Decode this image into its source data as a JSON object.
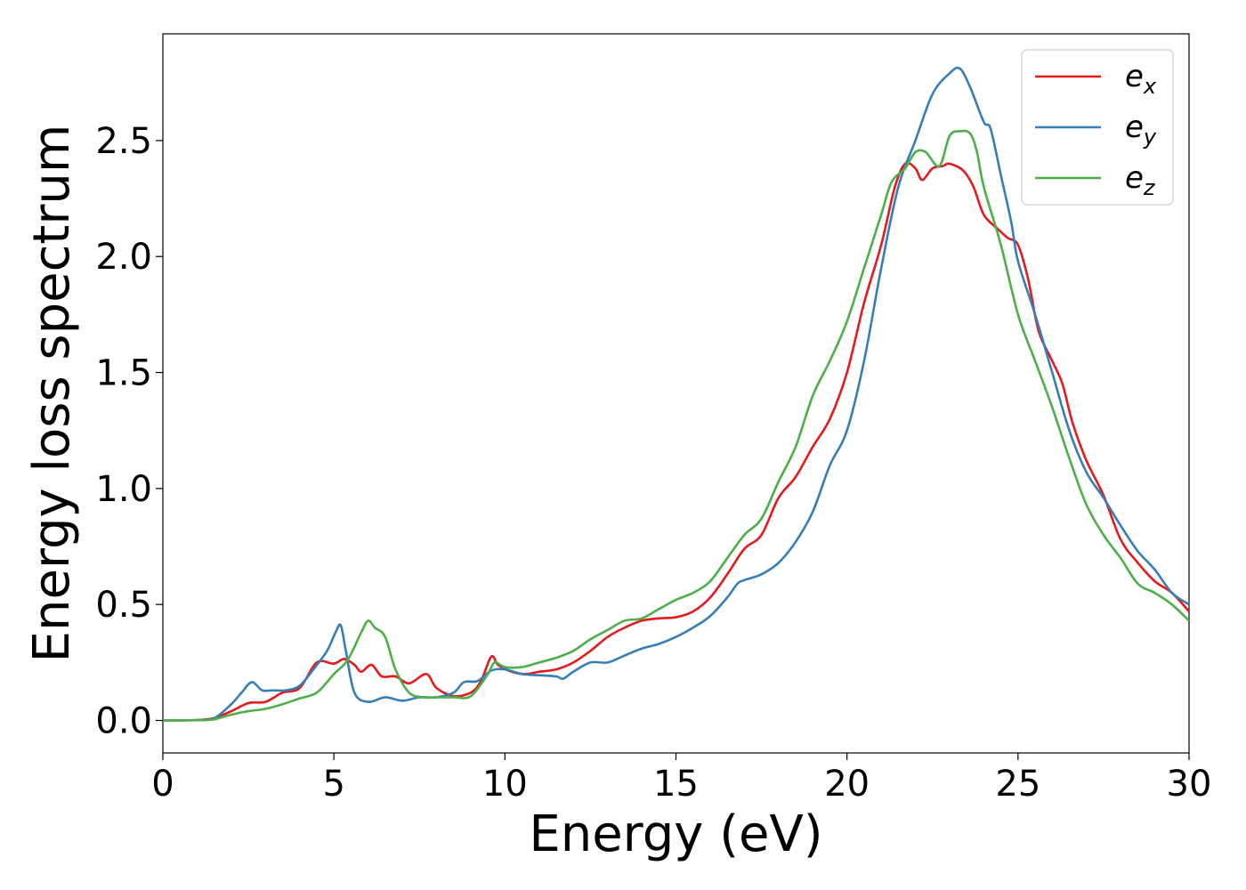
{
  "chart_data": {
    "type": "line",
    "xlabel": "Energy (eV)",
    "ylabel": "Energy loss spectrum",
    "xlim": [
      0,
      30
    ],
    "ylim": [
      -0.14,
      2.96
    ],
    "xticks": [
      "0",
      "5",
      "10",
      "15",
      "20",
      "25",
      "30"
    ],
    "yticks": [
      "0.0",
      "0.5",
      "1.0",
      "1.5",
      "2.0",
      "2.5"
    ],
    "legend_position": "top-right",
    "grid": false,
    "series": [
      {
        "name": "e_x",
        "label_base": "e",
        "label_sub": "x",
        "color": "#e41a1c",
        "points": [
          [
            0,
            0
          ],
          [
            1,
            0.002
          ],
          [
            1.5,
            0.01
          ],
          [
            2,
            0.04
          ],
          [
            2.5,
            0.075
          ],
          [
            3,
            0.08
          ],
          [
            3.5,
            0.12
          ],
          [
            4,
            0.14
          ],
          [
            4.5,
            0.25
          ],
          [
            5,
            0.245
          ],
          [
            5.3,
            0.265
          ],
          [
            5.6,
            0.24
          ],
          [
            5.8,
            0.21
          ],
          [
            6.1,
            0.24
          ],
          [
            6.4,
            0.19
          ],
          [
            6.8,
            0.19
          ],
          [
            7.2,
            0.16
          ],
          [
            7.7,
            0.2
          ],
          [
            8,
            0.14
          ],
          [
            8.5,
            0.105
          ],
          [
            9,
            0.12
          ],
          [
            9.3,
            0.17
          ],
          [
            9.6,
            0.275
          ],
          [
            9.8,
            0.24
          ],
          [
            10.2,
            0.21
          ],
          [
            10.6,
            0.2
          ],
          [
            11,
            0.21
          ],
          [
            11.5,
            0.22
          ],
          [
            12,
            0.25
          ],
          [
            12.5,
            0.3
          ],
          [
            13,
            0.36
          ],
          [
            13.5,
            0.4
          ],
          [
            14,
            0.43
          ],
          [
            14.5,
            0.44
          ],
          [
            15,
            0.445
          ],
          [
            15.5,
            0.47
          ],
          [
            16,
            0.53
          ],
          [
            16.5,
            0.63
          ],
          [
            17,
            0.74
          ],
          [
            17.5,
            0.8
          ],
          [
            18,
            0.96
          ],
          [
            18.5,
            1.05
          ],
          [
            19,
            1.18
          ],
          [
            19.5,
            1.3
          ],
          [
            20,
            1.5
          ],
          [
            20.5,
            1.8
          ],
          [
            21,
            2.05
          ],
          [
            21.4,
            2.3
          ],
          [
            21.7,
            2.4
          ],
          [
            22,
            2.38
          ],
          [
            22.2,
            2.33
          ],
          [
            22.5,
            2.38
          ],
          [
            22.8,
            2.39
          ],
          [
            23,
            2.4
          ],
          [
            23.4,
            2.37
          ],
          [
            23.7,
            2.3
          ],
          [
            24,
            2.18
          ],
          [
            24.4,
            2.12
          ],
          [
            24.7,
            2.08
          ],
          [
            25,
            2.05
          ],
          [
            25.3,
            1.9
          ],
          [
            25.6,
            1.68
          ],
          [
            26,
            1.55
          ],
          [
            26.3,
            1.45
          ],
          [
            26.6,
            1.28
          ],
          [
            27,
            1.12
          ],
          [
            27.5,
            0.97
          ],
          [
            28,
            0.78
          ],
          [
            28.5,
            0.68
          ],
          [
            29,
            0.6
          ],
          [
            29.5,
            0.55
          ],
          [
            30,
            0.47
          ]
        ]
      },
      {
        "name": "e_y",
        "label_base": "e",
        "label_sub": "y",
        "color": "#377eb8",
        "points": [
          [
            0,
            0
          ],
          [
            1,
            0.002
          ],
          [
            1.5,
            0.01
          ],
          [
            2,
            0.07
          ],
          [
            2.3,
            0.12
          ],
          [
            2.6,
            0.165
          ],
          [
            2.9,
            0.13
          ],
          [
            3.2,
            0.13
          ],
          [
            3.6,
            0.13
          ],
          [
            4,
            0.15
          ],
          [
            4.4,
            0.22
          ],
          [
            4.8,
            0.3
          ],
          [
            5.05,
            0.38
          ],
          [
            5.2,
            0.41
          ],
          [
            5.35,
            0.3
          ],
          [
            5.6,
            0.12
          ],
          [
            6,
            0.08
          ],
          [
            6.5,
            0.1
          ],
          [
            7,
            0.085
          ],
          [
            7.5,
            0.1
          ],
          [
            8,
            0.1
          ],
          [
            8.5,
            0.12
          ],
          [
            8.8,
            0.165
          ],
          [
            9.2,
            0.17
          ],
          [
            9.6,
            0.215
          ],
          [
            10,
            0.22
          ],
          [
            10.5,
            0.2
          ],
          [
            11,
            0.195
          ],
          [
            11.5,
            0.19
          ],
          [
            11.7,
            0.18
          ],
          [
            12,
            0.21
          ],
          [
            12.5,
            0.25
          ],
          [
            13,
            0.25
          ],
          [
            13.5,
            0.28
          ],
          [
            14,
            0.31
          ],
          [
            14.5,
            0.33
          ],
          [
            15,
            0.36
          ],
          [
            15.5,
            0.4
          ],
          [
            16,
            0.45
          ],
          [
            16.5,
            0.53
          ],
          [
            16.8,
            0.59
          ],
          [
            17,
            0.605
          ],
          [
            17.5,
            0.63
          ],
          [
            18,
            0.68
          ],
          [
            18.5,
            0.77
          ],
          [
            19,
            0.9
          ],
          [
            19.5,
            1.1
          ],
          [
            20,
            1.25
          ],
          [
            20.5,
            1.55
          ],
          [
            21,
            1.95
          ],
          [
            21.5,
            2.3
          ],
          [
            22,
            2.5
          ],
          [
            22.5,
            2.7
          ],
          [
            23,
            2.79
          ],
          [
            23.3,
            2.81
          ],
          [
            23.6,
            2.73
          ],
          [
            24,
            2.58
          ],
          [
            24.2,
            2.55
          ],
          [
            24.5,
            2.35
          ],
          [
            24.8,
            2.15
          ],
          [
            25,
            1.98
          ],
          [
            25.5,
            1.75
          ],
          [
            26,
            1.5
          ],
          [
            26.5,
            1.25
          ],
          [
            27,
            1.07
          ],
          [
            27.5,
            0.96
          ],
          [
            28,
            0.84
          ],
          [
            28.5,
            0.73
          ],
          [
            29,
            0.65
          ],
          [
            29.5,
            0.55
          ],
          [
            30,
            0.5
          ]
        ]
      },
      {
        "name": "e_z",
        "label_base": "e",
        "label_sub": "z",
        "color": "#4daf4a",
        "points": [
          [
            0,
            0
          ],
          [
            1,
            0.001
          ],
          [
            1.5,
            0.005
          ],
          [
            2,
            0.025
          ],
          [
            2.5,
            0.04
          ],
          [
            3,
            0.05
          ],
          [
            3.5,
            0.07
          ],
          [
            4,
            0.095
          ],
          [
            4.5,
            0.12
          ],
          [
            5,
            0.2
          ],
          [
            5.4,
            0.26
          ],
          [
            5.8,
            0.38
          ],
          [
            6,
            0.43
          ],
          [
            6.2,
            0.4
          ],
          [
            6.5,
            0.36
          ],
          [
            6.8,
            0.22
          ],
          [
            7.2,
            0.12
          ],
          [
            7.6,
            0.1
          ],
          [
            8,
            0.1
          ],
          [
            8.5,
            0.1
          ],
          [
            9,
            0.105
          ],
          [
            9.5,
            0.2
          ],
          [
            9.7,
            0.25
          ],
          [
            10,
            0.23
          ],
          [
            10.5,
            0.23
          ],
          [
            11,
            0.25
          ],
          [
            11.5,
            0.27
          ],
          [
            12,
            0.3
          ],
          [
            12.5,
            0.35
          ],
          [
            13,
            0.39
          ],
          [
            13.5,
            0.43
          ],
          [
            14,
            0.44
          ],
          [
            14.5,
            0.48
          ],
          [
            15,
            0.52
          ],
          [
            15.5,
            0.55
          ],
          [
            16,
            0.6
          ],
          [
            16.5,
            0.7
          ],
          [
            17,
            0.8
          ],
          [
            17.5,
            0.87
          ],
          [
            18,
            1.03
          ],
          [
            18.5,
            1.18
          ],
          [
            19,
            1.4
          ],
          [
            19.5,
            1.55
          ],
          [
            20,
            1.72
          ],
          [
            20.5,
            1.95
          ],
          [
            21,
            2.18
          ],
          [
            21.3,
            2.32
          ],
          [
            21.7,
            2.38
          ],
          [
            22,
            2.45
          ],
          [
            22.3,
            2.45
          ],
          [
            22.7,
            2.39
          ],
          [
            23,
            2.52
          ],
          [
            23.3,
            2.54
          ],
          [
            23.6,
            2.53
          ],
          [
            23.8,
            2.45
          ],
          [
            24,
            2.3
          ],
          [
            24.5,
            2.05
          ],
          [
            25,
            1.75
          ],
          [
            25.5,
            1.55
          ],
          [
            26,
            1.35
          ],
          [
            26.5,
            1.13
          ],
          [
            27,
            0.93
          ],
          [
            27.5,
            0.8
          ],
          [
            28,
            0.7
          ],
          [
            28.5,
            0.59
          ],
          [
            29,
            0.55
          ],
          [
            29.5,
            0.5
          ],
          [
            30,
            0.43
          ]
        ]
      }
    ]
  }
}
